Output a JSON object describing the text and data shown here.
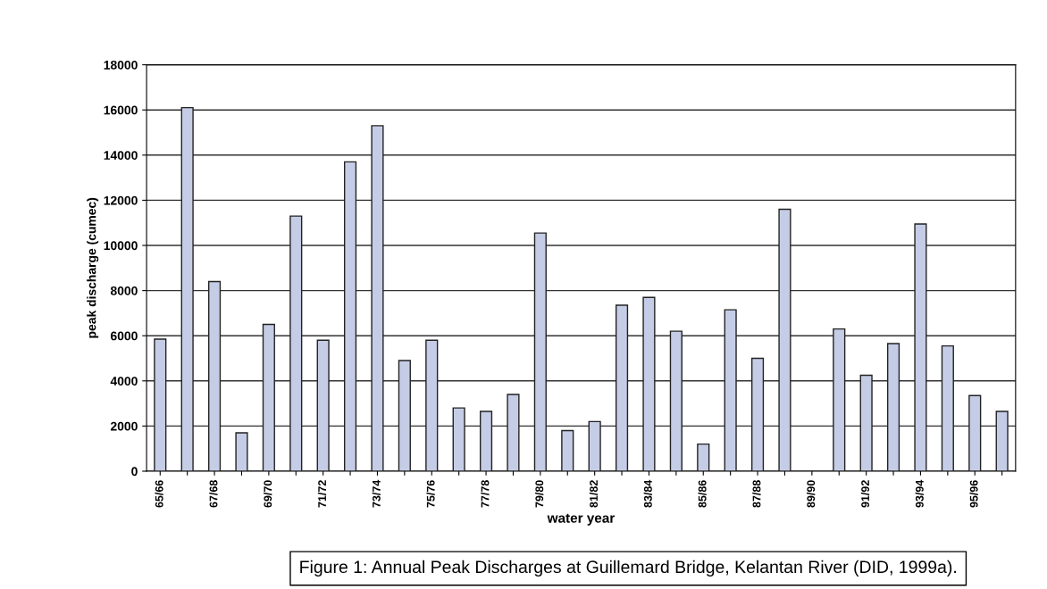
{
  "chart_data": {
    "type": "bar",
    "xlabel": "water year",
    "ylabel": "peak discharge (cumec)",
    "categories": [
      "65/66",
      null,
      "67/68",
      null,
      "69/70",
      null,
      "71/72",
      null,
      "73/74",
      null,
      "75/76",
      null,
      "77/78",
      null,
      "79/80",
      null,
      "81/82",
      null,
      "83/84",
      null,
      "85/86",
      null,
      "87/88",
      null,
      "89/90",
      null,
      "91/92",
      null,
      "93/94",
      null,
      "95/96",
      null
    ],
    "values": [
      5850,
      16100,
      8400,
      1700,
      6500,
      11300,
      5800,
      13700,
      15300,
      4900,
      5800,
      2800,
      2650,
      3400,
      10550,
      1800,
      2200,
      7350,
      7700,
      6200,
      1200,
      7150,
      5000,
      11600,
      null,
      6300,
      4250,
      5650,
      10950,
      5550,
      3350,
      2650
    ],
    "color": "#c5cde6",
    "ylim": [
      0,
      18000
    ],
    "yticks": [
      0,
      2000,
      4000,
      6000,
      8000,
      10000,
      12000,
      14000,
      16000,
      18000
    ],
    "grid": "y",
    "annotations": [
      "Figure 1: Annual Peak Discharges at Guillemard Bridge, Kelantan River (DID, 1999a)."
    ]
  }
}
